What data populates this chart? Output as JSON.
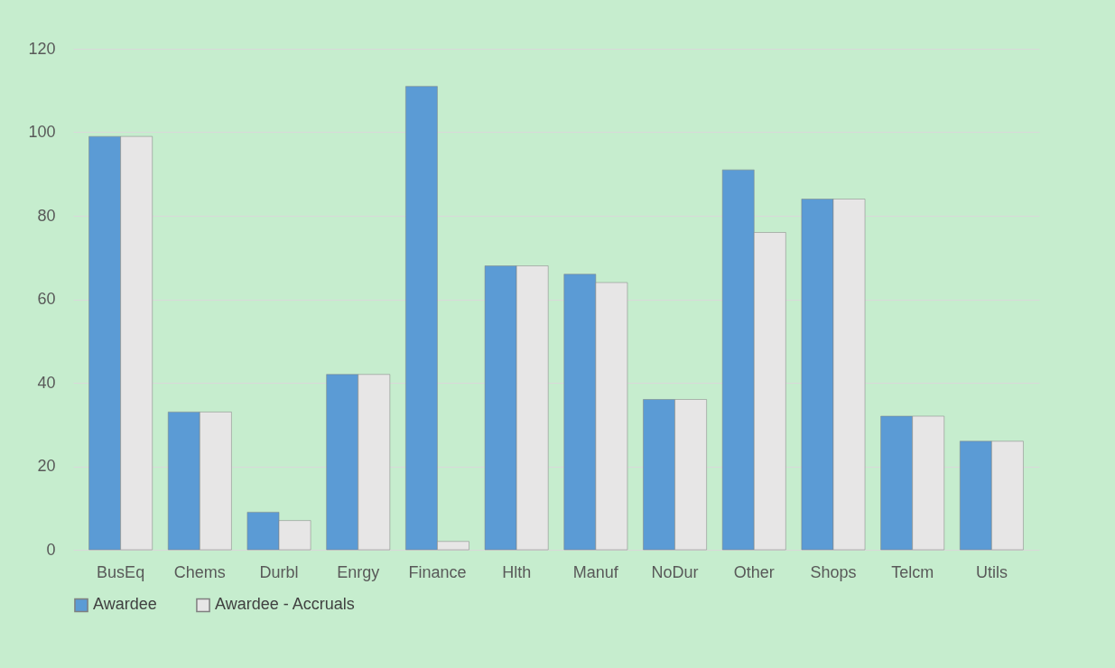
{
  "chart_data": {
    "type": "bar",
    "categories": [
      "BusEq",
      "Chems",
      "Durbl",
      "Enrgy",
      "Finance",
      "Hlth",
      "Manuf",
      "NoDur",
      "Other",
      "Shops",
      "Telcm",
      "Utils"
    ],
    "series": [
      {
        "name": "Awardee",
        "color": "#5b9bd5",
        "values": [
          99,
          33,
          9,
          42,
          111,
          68,
          66,
          36,
          91,
          84,
          32,
          26
        ]
      },
      {
        "name": "Awardee - Accruals",
        "color": "#e7e6e6",
        "values": [
          99,
          33,
          7,
          42,
          2,
          68,
          64,
          36,
          76,
          84,
          32,
          26
        ]
      }
    ],
    "ylim": [
      0,
      120
    ],
    "yticks": [
      0,
      20,
      40,
      60,
      80,
      100,
      120
    ],
    "grid": "y",
    "legend": "bottom"
  }
}
